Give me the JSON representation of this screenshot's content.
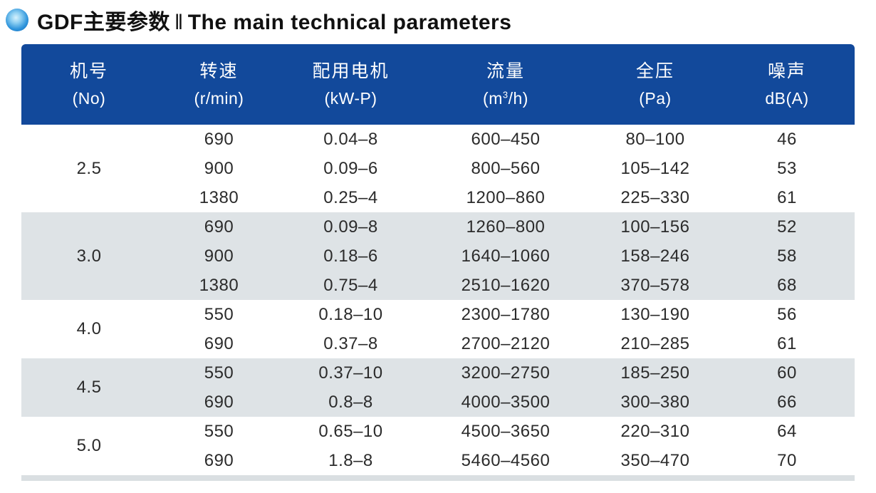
{
  "page": {
    "title_zh": "GDF主要参数",
    "title_sep": "‖",
    "title_en": "The main technical parameters"
  },
  "colors": {
    "header_bg": "#12499b",
    "header_text": "#ffffff",
    "shaded_row_bg": "#dee3e6",
    "bottom_strip": "#dadfe2",
    "bullet_blue": "#0d63b4",
    "body_text": "#2b2b2b"
  },
  "table": {
    "columns": [
      {
        "zh": "机号",
        "unit": "(No)"
      },
      {
        "zh": "转速",
        "unit": "(r/min)"
      },
      {
        "zh": "配用电机",
        "unit": "(kW-P)"
      },
      {
        "zh": "流量",
        "unit": "(m³/h)"
      },
      {
        "zh": "全压",
        "unit": "(Pa)"
      },
      {
        "zh": "噪声",
        "unit": "dB(A)"
      }
    ],
    "groups": [
      {
        "no": "2.5",
        "shaded": false,
        "rows": [
          {
            "speed": "690",
            "motor": "0.04–8",
            "flow": "600–450",
            "pressure": "80–100",
            "noise": "46"
          },
          {
            "speed": "900",
            "motor": "0.09–6",
            "flow": "800–560",
            "pressure": "105–142",
            "noise": "53"
          },
          {
            "speed": "1380",
            "motor": "0.25–4",
            "flow": "1200–860",
            "pressure": "225–330",
            "noise": "61"
          }
        ]
      },
      {
        "no": "3.0",
        "shaded": true,
        "rows": [
          {
            "speed": "690",
            "motor": "0.09–8",
            "flow": "1260–800",
            "pressure": "100–156",
            "noise": "52"
          },
          {
            "speed": "900",
            "motor": "0.18–6",
            "flow": "1640–1060",
            "pressure": "158–246",
            "noise": "58"
          },
          {
            "speed": "1380",
            "motor": "0.75–4",
            "flow": "2510–1620",
            "pressure": "370–578",
            "noise": "68"
          }
        ]
      },
      {
        "no": "4.0",
        "shaded": false,
        "rows": [
          {
            "speed": "550",
            "motor": "0.18–10",
            "flow": "2300–1780",
            "pressure": "130–190",
            "noise": "56"
          },
          {
            "speed": "690",
            "motor": "0.37–8",
            "flow": "2700–2120",
            "pressure": "210–285",
            "noise": "61"
          }
        ]
      },
      {
        "no": "4.5",
        "shaded": true,
        "rows": [
          {
            "speed": "550",
            "motor": "0.37–10",
            "flow": "3200–2750",
            "pressure": "185–250",
            "noise": "60"
          },
          {
            "speed": "690",
            "motor": "0.8–8",
            "flow": "4000–3500",
            "pressure": "300–380",
            "noise": "66"
          }
        ]
      },
      {
        "no": "5.0",
        "shaded": false,
        "rows": [
          {
            "speed": "550",
            "motor": "0.65–10",
            "flow": "4500–3650",
            "pressure": "220–310",
            "noise": "64"
          },
          {
            "speed": "690",
            "motor": "1.8–8",
            "flow": "5460–4560",
            "pressure": "350–470",
            "noise": "70"
          }
        ]
      }
    ]
  }
}
